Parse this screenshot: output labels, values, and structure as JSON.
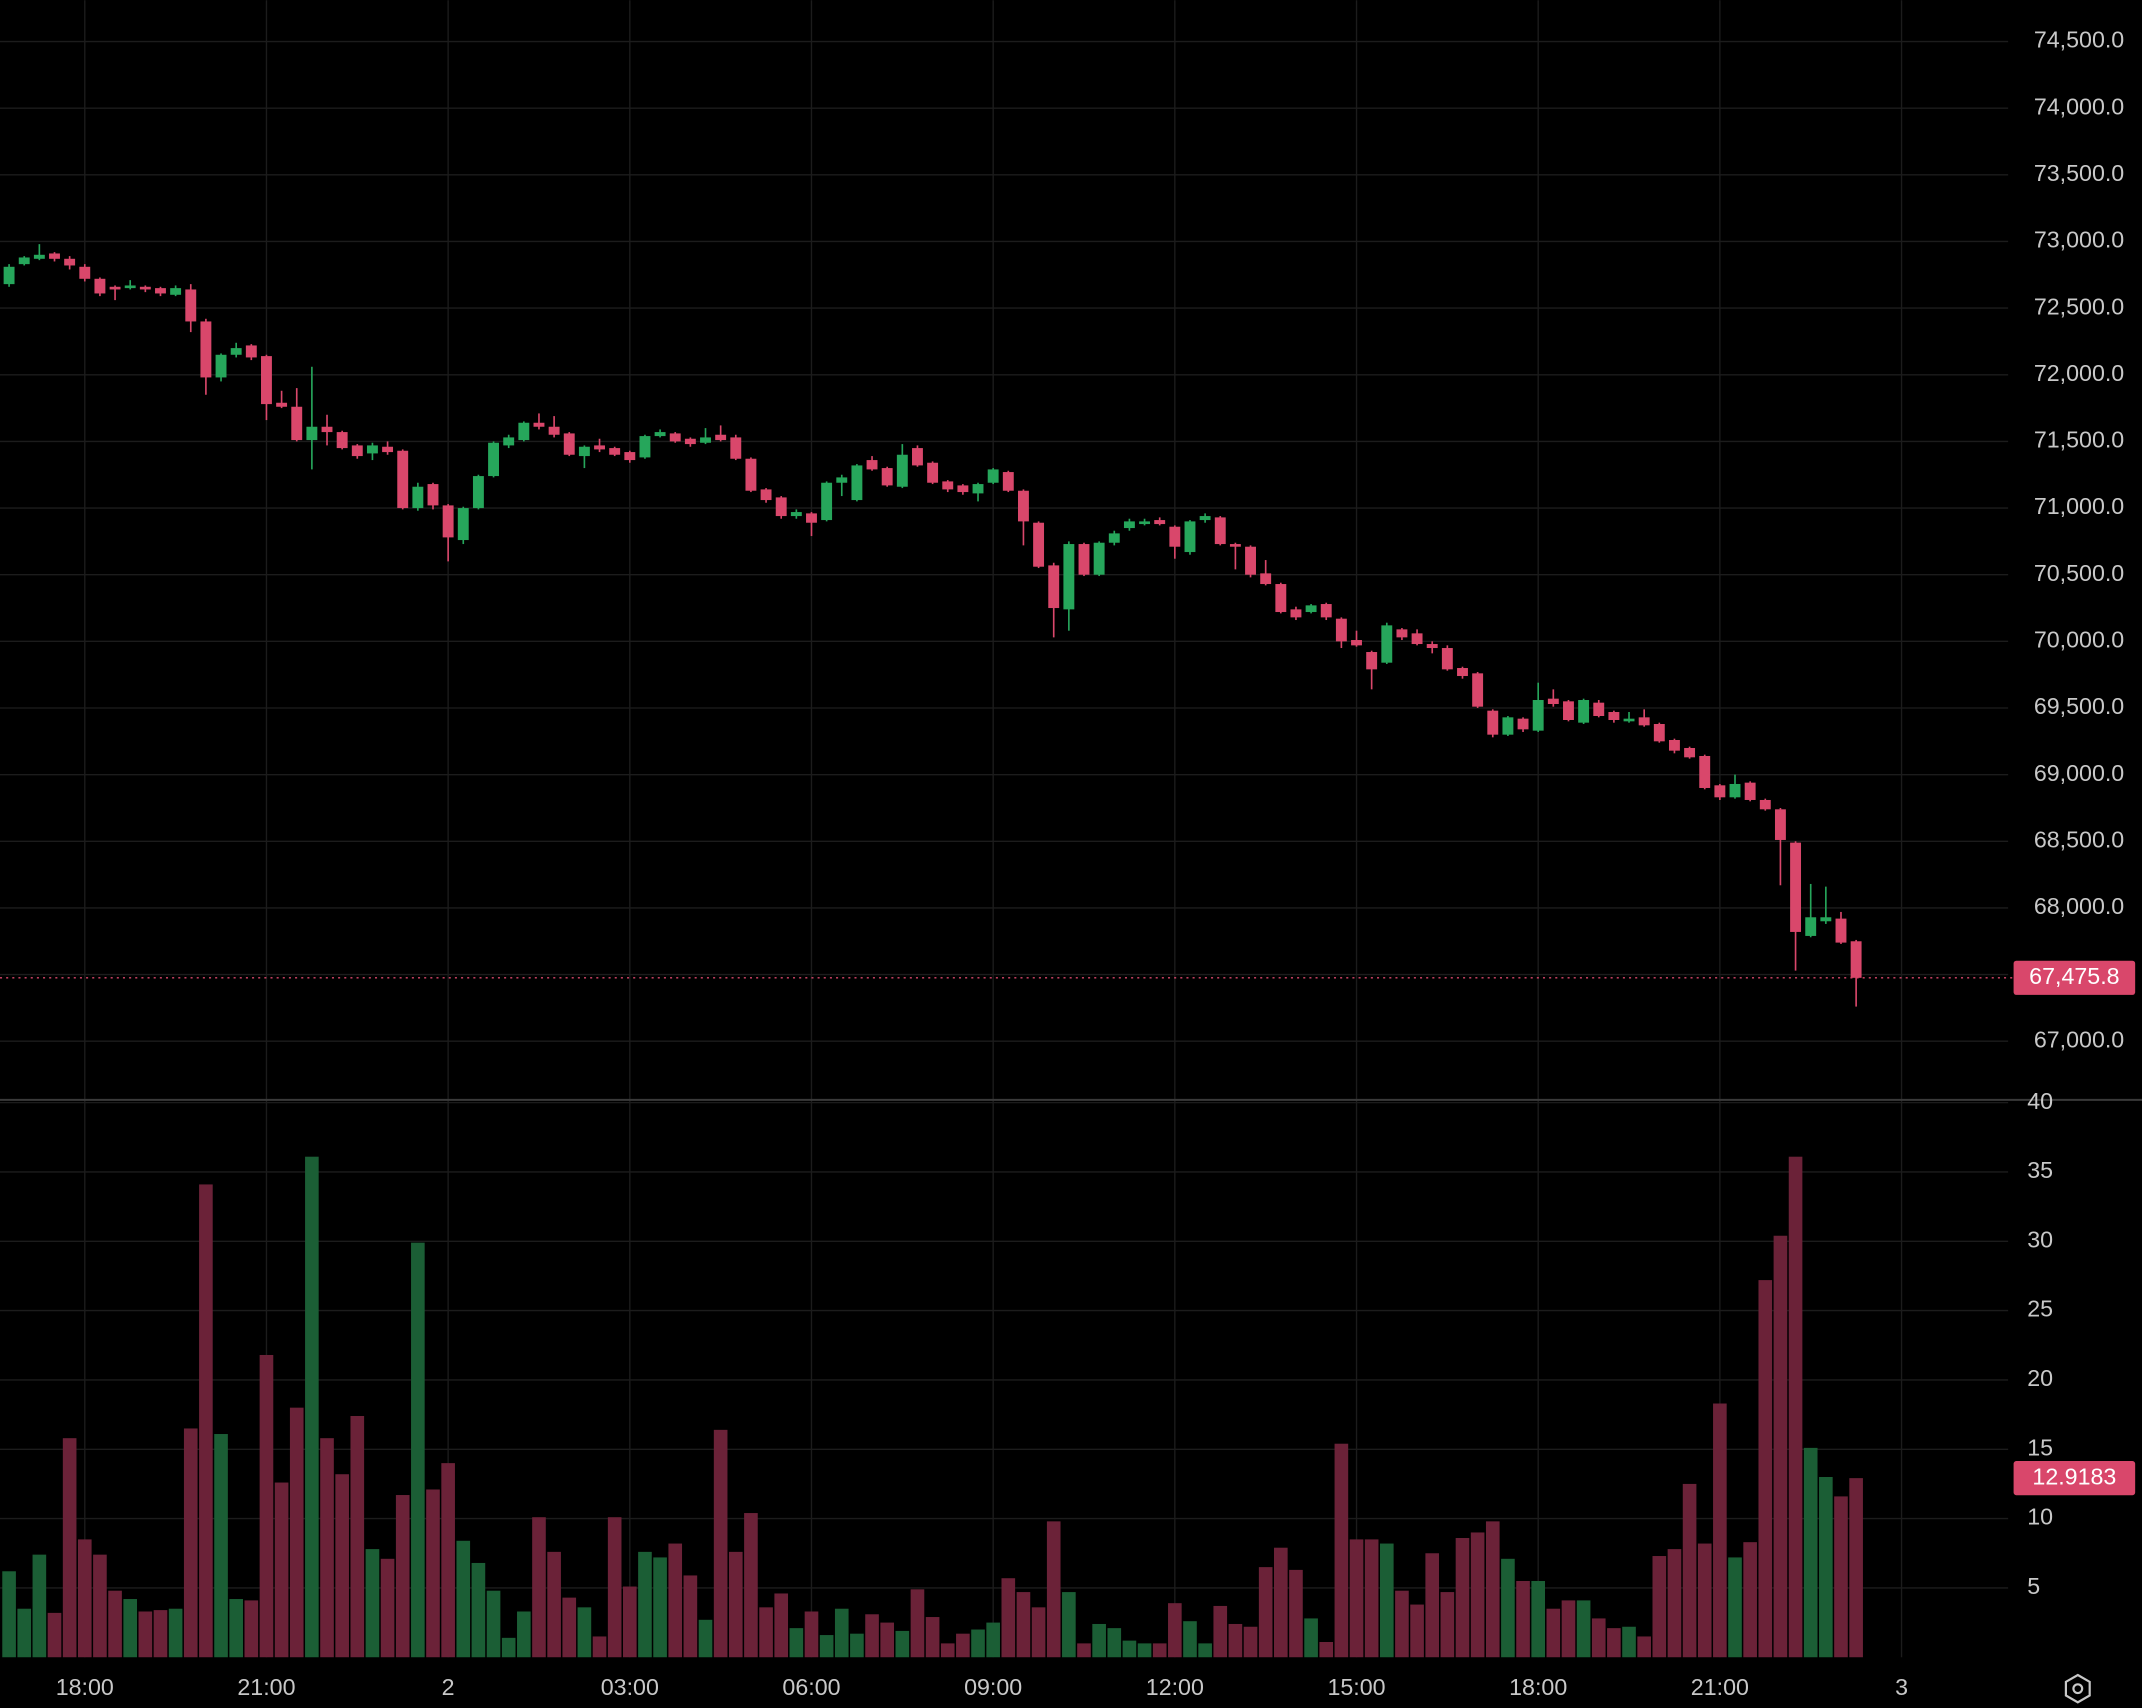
{
  "chart_data": {
    "type": "candlestick",
    "up_color": "#26a65b",
    "down_color": "#d9476b",
    "volume_up_color": "#1b5e35",
    "volume_down_color": "#6b2238",
    "grid": true,
    "x": [
      16.75,
      17,
      17.25,
      17.5,
      17.75,
      18,
      18.25,
      18.5,
      18.75,
      19,
      19.25,
      19.5,
      19.75,
      20,
      20.25,
      20.5,
      20.75,
      21,
      21.25,
      21.5,
      21.75,
      22,
      22.25,
      22.5,
      22.75,
      23,
      23.25,
      23.5,
      23.75,
      24,
      24.25,
      24.5,
      24.75,
      25,
      25.25,
      25.5,
      25.75,
      26,
      26.25,
      26.5,
      26.75,
      27,
      27.25,
      27.5,
      27.75,
      28,
      28.25,
      28.5,
      28.75,
      29,
      29.25,
      29.5,
      29.75,
      30,
      30.25,
      30.5,
      30.75,
      31,
      31.25,
      31.5,
      31.75,
      32,
      32.25,
      32.5,
      32.75,
      33,
      33.25,
      33.5,
      33.75,
      34,
      34.25,
      34.5,
      34.75,
      35,
      35.25,
      35.5,
      35.75,
      36,
      36.25,
      36.5,
      36.75,
      37,
      37.25,
      37.5,
      37.75,
      38,
      38.25,
      38.5,
      38.75,
      39,
      39.25,
      39.5,
      39.75,
      40,
      40.25,
      40.5,
      40.75,
      41,
      41.25,
      41.5,
      41.75,
      42,
      42.25,
      42.5,
      42.75,
      43,
      43.25,
      43.5,
      43.75,
      44,
      44.25,
      44.5,
      44.75,
      45,
      45.25,
      45.5,
      45.75,
      46,
      46.25,
      46.5,
      46.75,
      47,
      47.25
    ],
    "open": [
      72680,
      72830,
      72870,
      72910,
      72870,
      72810,
      72720,
      72660,
      72650,
      72660,
      72650,
      72600,
      72640,
      72400,
      71980,
      72150,
      72220,
      72140,
      71790,
      71760,
      71510,
      71610,
      71570,
      71470,
      71410,
      71460,
      71430,
      71000,
      71180,
      71020,
      70760,
      71000,
      71240,
      71470,
      71510,
      71640,
      71610,
      71560,
      71390,
      71470,
      71450,
      71420,
      71380,
      71540,
      71560,
      71520,
      71490,
      71550,
      71530,
      71370,
      71140,
      71080,
      70940,
      70960,
      70910,
      71190,
      71060,
      71360,
      71300,
      71160,
      71450,
      71340,
      71200,
      71170,
      71110,
      71190,
      71270,
      71130,
      70890,
      70570,
      70240,
      70730,
      70500,
      70740,
      70850,
      70880,
      70910,
      70860,
      70670,
      70910,
      70930,
      70730,
      70710,
      70510,
      70430,
      70240,
      70220,
      70280,
      70170,
      70010,
      69920,
      69840,
      70090,
      70060,
      69980,
      69950,
      69800,
      69760,
      69480,
      69300,
      69420,
      69330,
      69570,
      69550,
      69390,
      69540,
      69470,
      69400,
      69430,
      69380,
      69260,
      69200,
      69140,
      68920,
      68830,
      68940,
      68810,
      68740,
      68490,
      67790,
      67900,
      67920,
      67750
    ],
    "high": [
      72830,
      72890,
      72980,
      72920,
      72890,
      72830,
      72730,
      72670,
      72710,
      72670,
      72660,
      72670,
      72680,
      72420,
      72160,
      72240,
      72230,
      72150,
      71880,
      71900,
      72060,
      71700,
      71580,
      71480,
      71490,
      71500,
      71440,
      71190,
      71190,
      71030,
      71010,
      71250,
      71500,
      71550,
      71650,
      71710,
      71690,
      71570,
      71470,
      71520,
      71460,
      71430,
      71550,
      71590,
      71570,
      71530,
      71600,
      71620,
      71550,
      71380,
      71150,
      71090,
      70990,
      70970,
      71200,
      71250,
      71330,
      71390,
      71310,
      71480,
      71470,
      71350,
      71210,
      71180,
      71190,
      71300,
      71280,
      71140,
      70900,
      70590,
      70750,
      70740,
      70750,
      70830,
      70920,
      70920,
      70930,
      70870,
      70910,
      70960,
      70940,
      70740,
      70720,
      70610,
      70440,
      70260,
      70280,
      70290,
      70180,
      70080,
      69930,
      70140,
      70100,
      70090,
      70000,
      69970,
      69810,
      69770,
      69490,
      69440,
      69430,
      69690,
      69640,
      69560,
      69570,
      69560,
      69480,
      69470,
      69490,
      69390,
      69270,
      69210,
      69150,
      68930,
      69000,
      68950,
      68820,
      68750,
      68500,
      68180,
      68160,
      67970,
      67760
    ],
    "low": [
      72660,
      72820,
      72860,
      72850,
      72790,
      72700,
      72590,
      72560,
      72640,
      72620,
      72590,
      72590,
      72320,
      71850,
      71950,
      72130,
      72110,
      71660,
      71750,
      71500,
      71290,
      71470,
      71440,
      71370,
      71360,
      71400,
      70990,
      70980,
      70990,
      70600,
      70730,
      70990,
      71230,
      71450,
      71500,
      71590,
      71530,
      71390,
      71300,
      71420,
      71390,
      71340,
      71370,
      71530,
      71490,
      71460,
      71480,
      71500,
      71360,
      71120,
      71040,
      70920,
      70920,
      70790,
      70900,
      71090,
      71050,
      71280,
      71160,
      71150,
      71310,
      71180,
      71120,
      71100,
      71050,
      71180,
      71120,
      70720,
      70550,
      70030,
      70080,
      70490,
      70490,
      70720,
      70830,
      70870,
      70870,
      70620,
      70650,
      70890,
      70720,
      70540,
      70480,
      70420,
      70210,
      70160,
      70210,
      70160,
      69950,
      69960,
      69640,
      69830,
      70010,
      69970,
      69910,
      69780,
      69720,
      69500,
      69280,
      69290,
      69320,
      69320,
      69510,
      69400,
      69380,
      69430,
      69390,
      69390,
      69360,
      69240,
      69160,
      69120,
      68890,
      68810,
      68820,
      68800,
      68730,
      68170,
      67530,
      67780,
      67880,
      67730,
      67260
    ],
    "close": [
      72810,
      72880,
      72900,
      72870,
      72820,
      72720,
      72610,
      72640,
      72670,
      72640,
      72610,
      72650,
      72400,
      71980,
      72150,
      72200,
      72130,
      71780,
      71760,
      71510,
      71610,
      71570,
      71450,
      71390,
      71470,
      71420,
      71000,
      71160,
      71020,
      70780,
      71000,
      71240,
      71490,
      71530,
      71640,
      71610,
      71550,
      71400,
      71460,
      71440,
      71400,
      71360,
      71540,
      71570,
      71500,
      71480,
      71530,
      71510,
      71370,
      71130,
      71060,
      70940,
      70970,
      70890,
      71190,
      71230,
      71320,
      71290,
      71170,
      71400,
      71320,
      71190,
      71140,
      71120,
      71180,
      71290,
      71130,
      70900,
      70560,
      70250,
      70730,
      70500,
      70740,
      70810,
      70900,
      70900,
      70880,
      70710,
      70900,
      70940,
      70730,
      70710,
      70500,
      70430,
      70220,
      70180,
      70270,
      70180,
      70000,
      69970,
      69790,
      70120,
      70030,
      69980,
      69950,
      69790,
      69740,
      69510,
      69300,
      69430,
      69340,
      69560,
      69530,
      69410,
      69560,
      69440,
      69410,
      69420,
      69370,
      69250,
      69180,
      69130,
      68900,
      68830,
      68930,
      68810,
      68740,
      68510,
      67820,
      67930,
      67930,
      67740,
      67475.8
    ],
    "last_price": {
      "value": 67475.8,
      "label": "67,475.8"
    },
    "xlim": [
      16.6,
      49.76
    ],
    "xticks": [
      {
        "value": 18,
        "label": "18:00"
      },
      {
        "value": 21,
        "label": "21:00"
      },
      {
        "value": 24,
        "label": "2"
      },
      {
        "value": 27,
        "label": "03:00"
      },
      {
        "value": 30,
        "label": "06:00"
      },
      {
        "value": 33,
        "label": "09:00"
      },
      {
        "value": 36,
        "label": "12:00"
      },
      {
        "value": 39,
        "label": "15:00"
      },
      {
        "value": 42,
        "label": "18:00"
      },
      {
        "value": 45,
        "label": "21:00"
      },
      {
        "value": 48,
        "label": "3"
      }
    ],
    "ylim": [
      66560,
      74810
    ],
    "yticks": [
      {
        "value": 67000,
        "label": "67,000.0"
      },
      {
        "value": 67500,
        "label": "67,500.0"
      },
      {
        "value": 68000,
        "label": "68,000.0"
      },
      {
        "value": 68500,
        "label": "68,500.0"
      },
      {
        "value": 69000,
        "label": "69,000.0"
      },
      {
        "value": 69500,
        "label": "69,500.0"
      },
      {
        "value": 70000,
        "label": "70,000.0"
      },
      {
        "value": 70500,
        "label": "70,500.0"
      },
      {
        "value": 71000,
        "label": "71,000.0"
      },
      {
        "value": 71500,
        "label": "71,500.0"
      },
      {
        "value": 72000,
        "label": "72,000.0"
      },
      {
        "value": 72500,
        "label": "72,500.0"
      },
      {
        "value": 73000,
        "label": "73,000.0"
      },
      {
        "value": 73500,
        "label": "73,500.0"
      },
      {
        "value": 74000,
        "label": "74,000.0"
      },
      {
        "value": 74500,
        "label": "74,500.0"
      }
    ],
    "volume": {
      "values": [
        6.2,
        3.5,
        7.4,
        3.2,
        15.8,
        8.5,
        7.4,
        4.8,
        4.2,
        3.3,
        3.4,
        3.5,
        16.5,
        34.1,
        16.1,
        4.2,
        4.1,
        21.8,
        12.6,
        18.0,
        36.1,
        15.8,
        13.2,
        17.4,
        7.8,
        7.1,
        11.7,
        29.9,
        12.1,
        14.0,
        8.4,
        6.8,
        4.8,
        1.4,
        3.3,
        10.1,
        7.6,
        4.3,
        3.6,
        1.5,
        10.1,
        5.1,
        7.6,
        7.2,
        8.2,
        5.9,
        2.7,
        16.4,
        7.6,
        10.4,
        3.6,
        4.6,
        2.1,
        3.3,
        1.6,
        3.5,
        1.7,
        3.1,
        2.5,
        1.9,
        4.9,
        2.9,
        1.0,
        1.7,
        2.0,
        2.5,
        5.7,
        4.7,
        3.6,
        9.8,
        4.7,
        1.0,
        2.4,
        2.1,
        1.2,
        1.0,
        1.0,
        3.9,
        2.6,
        1.0,
        3.7,
        2.4,
        2.2,
        6.5,
        7.9,
        6.3,
        2.8,
        1.1,
        15.4,
        8.5,
        8.5,
        8.2,
        4.8,
        3.8,
        7.5,
        4.7,
        8.6,
        9.0,
        9.8,
        7.1,
        5.5,
        5.5,
        3.5,
        4.1,
        4.1,
        2.8,
        2.1,
        2.2,
        1.5,
        7.3,
        7.8,
        12.5,
        8.2,
        18.3,
        7.2,
        8.3,
        27.2,
        30.4,
        36.1,
        15.1,
        13.0,
        11.6,
        12.9183
      ],
      "ylim": [
        0,
        40
      ],
      "yticks": [
        5,
        10,
        15,
        20,
        25,
        30,
        35,
        40
      ]
    }
  }
}
